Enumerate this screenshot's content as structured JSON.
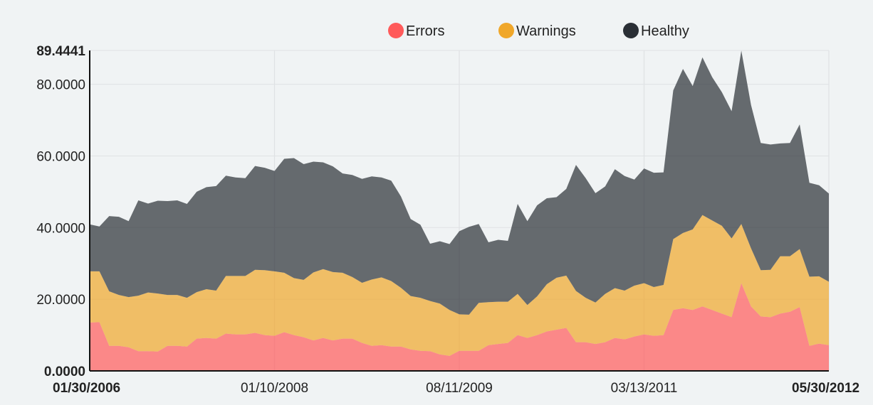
{
  "chart_data": {
    "type": "area",
    "stacked": true,
    "title": "",
    "xlabel": "",
    "ylabel": "",
    "ylim": [
      0,
      89.4441
    ],
    "y_ticks": [
      "0.0000",
      "20.0000",
      "40.0000",
      "60.0000",
      "80.0000",
      "89.4441"
    ],
    "x_tick_labels": [
      "01/30/2006",
      "01/10/2008",
      "08/11/2009",
      "03/13/2011",
      "05/30/2012"
    ],
    "grid": true,
    "legend_position": "top-center",
    "series": [
      {
        "name": "Errors",
        "color": "#ff5a5a",
        "values": [
          13.5,
          13.6,
          7.0,
          7.0,
          6.6,
          5.5,
          5.5,
          5.4,
          7.0,
          7.0,
          6.8,
          9.0,
          9.2,
          9.0,
          10.4,
          10.2,
          10.2,
          10.6,
          10.0,
          9.8,
          10.8,
          10.0,
          9.4,
          8.5,
          9.2,
          8.5,
          9.0,
          9.0,
          7.8,
          7.0,
          7.2,
          6.8,
          6.8,
          6.0,
          5.6,
          5.5,
          4.6,
          4.2,
          5.6,
          5.6,
          5.6,
          7.2,
          7.5,
          7.8,
          10.0,
          9.2,
          10.0,
          11.0,
          11.5,
          12.0,
          8.0,
          8.0,
          7.5,
          8.0,
          9.2,
          8.8,
          9.6,
          10.2,
          9.8,
          10.0,
          17.0,
          17.5,
          17.0,
          18.0,
          17.0,
          16.0,
          15.0,
          24.5,
          18.0,
          15.2,
          15.0,
          16.0,
          16.5,
          17.8,
          7.0,
          7.6,
          7.2
        ]
      },
      {
        "name": "Warnings",
        "color": "#f0a72a",
        "values": [
          14.3,
          14.2,
          15.2,
          14.2,
          14.0,
          15.5,
          16.4,
          16.2,
          14.2,
          14.2,
          13.6,
          13.0,
          13.6,
          13.4,
          16.1,
          16.3,
          16.3,
          17.6,
          18.1,
          18.0,
          16.6,
          15.9,
          16.0,
          19.0,
          19.2,
          19.1,
          18.4,
          17.2,
          16.8,
          18.5,
          18.9,
          18.3,
          16.4,
          14.9,
          14.8,
          14.0,
          14.2,
          12.8,
          10.2,
          10.1,
          13.4,
          12.0,
          11.8,
          11.5,
          11.5,
          9.2,
          10.8,
          13.2,
          14.5,
          14.6,
          14.3,
          12.4,
          11.6,
          13.5,
          13.9,
          13.6,
          14.2,
          14.3,
          13.6,
          14.0,
          19.8,
          21.0,
          22.5,
          25.5,
          25.0,
          24.5,
          22.0,
          16.5,
          16.2,
          12.9,
          13.2,
          16.0,
          15.5,
          16.2,
          19.3,
          18.8,
          17.7
        ]
      },
      {
        "name": "Healthy",
        "color": "#2a2f35",
        "values": [
          13.1,
          12.5,
          21.0,
          21.8,
          21.2,
          26.6,
          24.8,
          25.9,
          26.2,
          26.4,
          26.2,
          28.0,
          28.5,
          29.2,
          28.0,
          27.5,
          27.3,
          29.0,
          28.6,
          28.0,
          31.8,
          33.5,
          32.3,
          30.9,
          29.8,
          29.5,
          27.7,
          28.5,
          29.0,
          28.8,
          27.9,
          28.0,
          25.5,
          21.5,
          20.4,
          16.0,
          17.4,
          18.4,
          23.2,
          24.5,
          22.0,
          16.7,
          17.3,
          17.0,
          25.1,
          23.4,
          25.4,
          24.0,
          22.5,
          24.2,
          35.2,
          33.4,
          30.5,
          30.0,
          33.2,
          32.0,
          29.6,
          32.0,
          31.9,
          31.4,
          41.5,
          45.8,
          40.0,
          44.0,
          40.0,
          37.3,
          35.5,
          48.4,
          40.0,
          35.5,
          35.0,
          31.5,
          31.6,
          34.8,
          26.2,
          25.4,
          24.6
        ]
      }
    ]
  }
}
